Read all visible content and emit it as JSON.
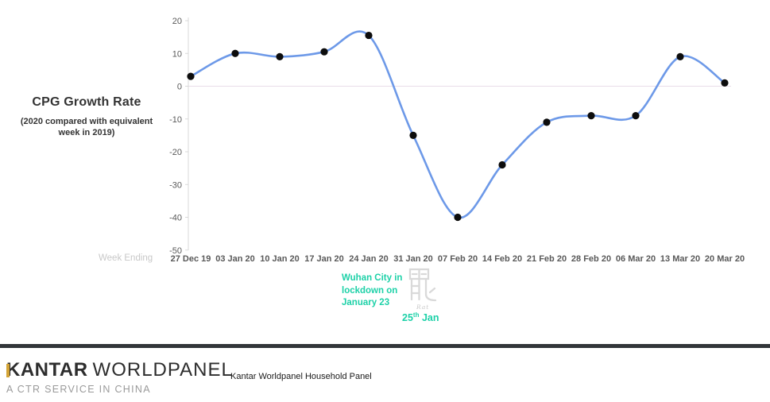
{
  "chart": {
    "title": "CPG Growth Rate",
    "subtitle": "(2020 compared with equivalent week in 2019)",
    "x_axis_label": "Week Ending",
    "colors": {
      "line": "#6d99e8",
      "point": "#0d0d0d",
      "zero_line": "#e8dce8",
      "axis": "#d9d9d9",
      "tick_text": "#595959",
      "axis_title_text": "#c8c8c8"
    }
  },
  "chart_data": {
    "type": "line",
    "title": "CPG Growth Rate",
    "subtitle": "(2020 compared with equivalent week in 2019)",
    "xlabel": "Week Ending",
    "ylabel": "",
    "categories": [
      "27 Dec 19",
      "03 Jan 20",
      "10 Jan 20",
      "17 Jan 20",
      "24 Jan 20",
      "31 Jan 20",
      "07 Feb 20",
      "14 Feb 20",
      "21 Feb 20",
      "28 Feb 20",
      "06 Mar 20",
      "13 Mar 20",
      "20 Mar 20"
    ],
    "values": [
      3,
      10,
      9,
      10.5,
      15.5,
      -15,
      -40,
      -24,
      -11,
      -9,
      -9,
      9,
      1
    ],
    "ylim": [
      -50,
      20
    ],
    "yticks": [
      20,
      10,
      0,
      -10,
      -20,
      -30,
      -40,
      -50
    ],
    "grid": "zero-line-only",
    "smooth": true,
    "legend": "none"
  },
  "annotation": {
    "line1": "Wuhan City in",
    "line2": "lockdown on",
    "line3": "January 23",
    "date_day": "25",
    "date_suffix": "th",
    "date_rest": " Jan",
    "color": "#1dd1a8",
    "zodiac_icon": "chinese-character-rat",
    "zodiac_label": "Rat",
    "zodiac_color": "#d9d9d9"
  },
  "footer": {
    "brand_bold": "KANTAR",
    "brand_light": "WORLDPANEL",
    "brand_sub": "A CTR SERVICE IN CHINA",
    "caption": "Kantar Worldpanel Household Panel",
    "accent_color": "#d4a437",
    "divider_color": "#323639"
  }
}
